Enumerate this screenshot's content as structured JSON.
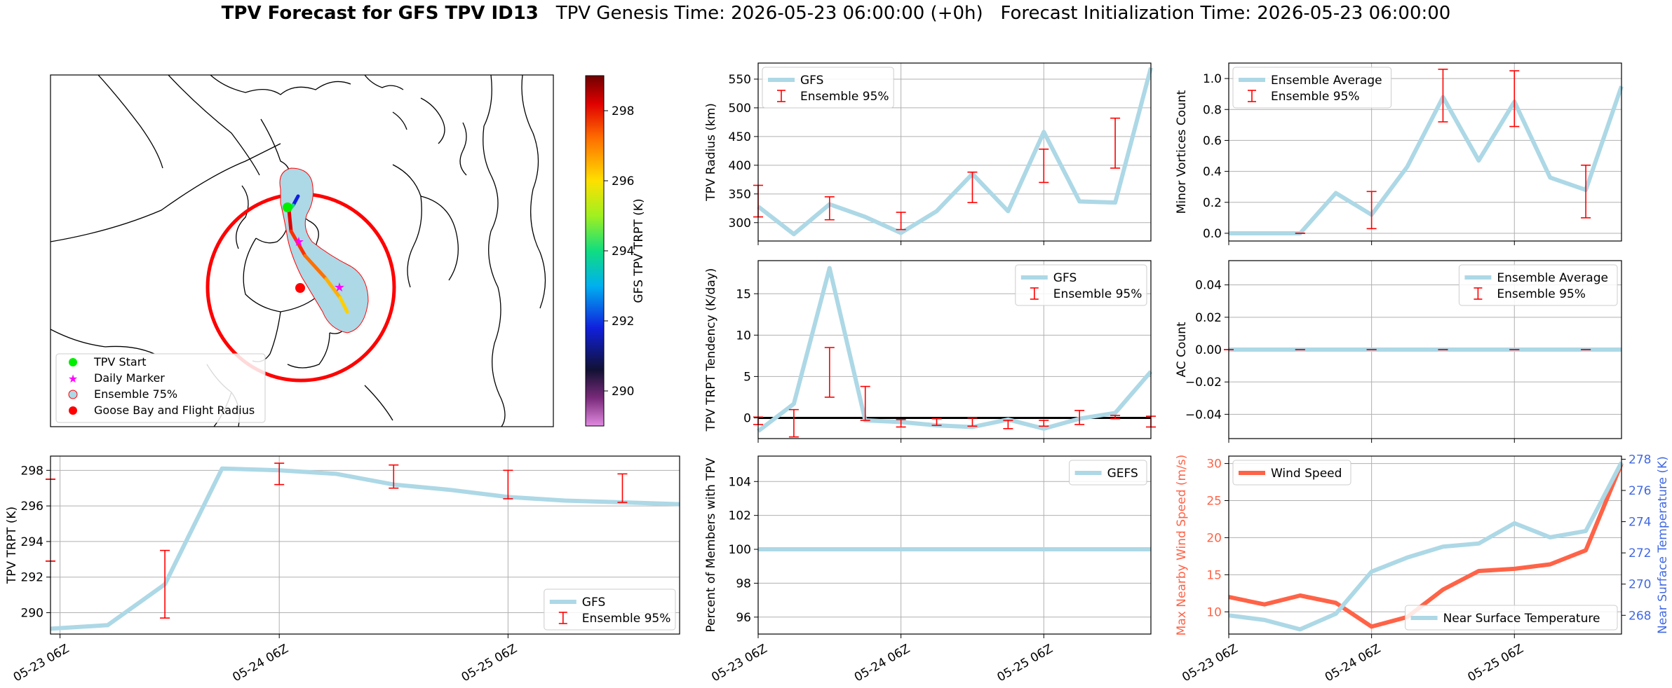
{
  "title": {
    "bold": "TPV Forecast for GFS TPV ID13",
    "genesis": "TPV Genesis Time: 2026-05-23 06:00:00 (+0h)",
    "init": "Forecast Initialization Time: 2026-05-23 06:00:00"
  },
  "colors": {
    "series": "#add8e6",
    "errorbar": "#ff0000",
    "wind": "#ff6347",
    "temp_axis": "#4169e1",
    "zero_line": "#000000",
    "grid": "#b0b0b0"
  },
  "map": {
    "legend": [
      "TPV Start",
      "Daily Marker",
      "Ensemble 75%",
      "Goose Bay and Flight Radius"
    ],
    "colorbar_label": "GFS TPV TRPT (K)",
    "colorbar_ticks": [
      290,
      292,
      294,
      296,
      298
    ],
    "colorbar_range": [
      289.0,
      299.0
    ]
  },
  "chart_data": [
    {
      "id": "radius",
      "type": "line",
      "ylabel": "TPV Radius (km)",
      "ylim": [
        268,
        578
      ],
      "yticks": [
        300,
        350,
        400,
        450,
        500,
        550
      ],
      "grid": true,
      "legend_position": "upper-left",
      "legend": [
        "GFS",
        "Ensemble 95%"
      ],
      "series": [
        {
          "name": "GFS",
          "x": [
            0,
            6,
            12,
            18,
            24,
            30,
            36,
            42,
            48,
            54,
            60,
            66
          ],
          "values": [
            328,
            280,
            332,
            310,
            282,
            320,
            385,
            320,
            458,
            337,
            335,
            570
          ]
        }
      ],
      "errorbars": [
        {
          "x": 0,
          "lo": 310,
          "hi": 365
        },
        {
          "x": 12,
          "lo": 305,
          "hi": 345
        },
        {
          "x": 24,
          "lo": 288,
          "hi": 318
        },
        {
          "x": 36,
          "lo": 335,
          "hi": 388
        },
        {
          "x": 48,
          "lo": 370,
          "hi": 428
        },
        {
          "x": 60,
          "lo": 395,
          "hi": 482
        }
      ],
      "xlim": [
        0,
        66
      ],
      "x_ticks": [
        {
          "x": 0,
          "label": ""
        },
        {
          "x": 24,
          "label": ""
        },
        {
          "x": 48,
          "label": ""
        }
      ]
    },
    {
      "id": "minor",
      "type": "line",
      "ylabel": "Minor Vortices Count",
      "ylim": [
        -0.05,
        1.1
      ],
      "yticks": [
        0.0,
        0.2,
        0.4,
        0.6,
        0.8,
        1.0
      ],
      "ytick_fmt": 1,
      "grid": true,
      "legend_position": "upper-left",
      "legend": [
        "Ensemble Average",
        "Ensemble 95%"
      ],
      "series": [
        {
          "name": "Ensemble Average",
          "x": [
            0,
            6,
            12,
            18,
            24,
            30,
            36,
            42,
            48,
            54,
            60,
            66
          ],
          "values": [
            0,
            0,
            0,
            0.26,
            0.12,
            0.43,
            0.88,
            0.47,
            0.85,
            0.36,
            0.28,
            0.95
          ]
        }
      ],
      "errorbars": [
        {
          "x": 12,
          "lo": 0.0,
          "hi": 0.0
        },
        {
          "x": 24,
          "lo": 0.03,
          "hi": 0.27
        },
        {
          "x": 36,
          "lo": 0.72,
          "hi": 1.06
        },
        {
          "x": 48,
          "lo": 0.69,
          "hi": 1.05
        },
        {
          "x": 60,
          "lo": 0.1,
          "hi": 0.44
        }
      ],
      "xlim": [
        0,
        66
      ],
      "x_ticks": [
        {
          "x": 0,
          "label": ""
        },
        {
          "x": 24,
          "label": ""
        },
        {
          "x": 48,
          "label": ""
        }
      ]
    },
    {
      "id": "tendency",
      "type": "line",
      "ylabel": "TPV TRPT Tendency (K/day)",
      "ylim": [
        -2.5,
        19
      ],
      "yticks": [
        0,
        5,
        10,
        15
      ],
      "grid": true,
      "zero_line": true,
      "legend_position": "upper-right",
      "legend": [
        "GFS",
        "Ensemble 95%"
      ],
      "series": [
        {
          "name": "GFS",
          "x": [
            0,
            6,
            12,
            18,
            24,
            30,
            36,
            42,
            48,
            54,
            60,
            66
          ],
          "values": [
            -1.6,
            1.7,
            18.1,
            -0.3,
            -0.5,
            -0.9,
            -1.1,
            -0.2,
            -1.3,
            -0.1,
            0.6,
            5.6
          ]
        }
      ],
      "errorbars": [
        {
          "x": 0,
          "lo": -0.8,
          "hi": 0.1
        },
        {
          "x": 6,
          "lo": -2.3,
          "hi": 1.0
        },
        {
          "x": 12,
          "lo": 2.5,
          "hi": 8.5
        },
        {
          "x": 18,
          "lo": -0.3,
          "hi": 3.8
        },
        {
          "x": 24,
          "lo": -1.1,
          "hi": -0.2
        },
        {
          "x": 30,
          "lo": -0.9,
          "hi": -0.1
        },
        {
          "x": 36,
          "lo": -1.0,
          "hi": 0.0
        },
        {
          "x": 42,
          "lo": -1.3,
          "hi": -0.3
        },
        {
          "x": 48,
          "lo": -1.0,
          "hi": -0.3
        },
        {
          "x": 54,
          "lo": -0.8,
          "hi": 0.9
        },
        {
          "x": 60,
          "lo": -0.1,
          "hi": 0.3
        },
        {
          "x": 66,
          "lo": -1.1,
          "hi": 0.2
        }
      ],
      "xlim": [
        0,
        66
      ],
      "x_ticks": [
        {
          "x": 0,
          "label": ""
        },
        {
          "x": 24,
          "label": ""
        },
        {
          "x": 48,
          "label": ""
        }
      ]
    },
    {
      "id": "ac",
      "type": "line",
      "ylabel": "AC Count",
      "ylim": [
        -0.055,
        0.055
      ],
      "yticks": [
        -0.04,
        -0.02,
        0.0,
        0.02,
        0.04
      ],
      "ytick_fmt": 2,
      "grid": true,
      "legend_position": "upper-right",
      "legend": [
        "Ensemble Average",
        "Ensemble 95%"
      ],
      "series": [
        {
          "name": "Ensemble Average",
          "x": [
            0,
            6,
            12,
            18,
            24,
            30,
            36,
            42,
            48,
            54,
            60,
            66
          ],
          "values": [
            0,
            0,
            0,
            0,
            0,
            0,
            0,
            0,
            0,
            0,
            0,
            0
          ]
        }
      ],
      "errorbars": [
        {
          "x": 0,
          "lo": 0,
          "hi": 0
        },
        {
          "x": 12,
          "lo": 0,
          "hi": 0
        },
        {
          "x": 24,
          "lo": 0,
          "hi": 0
        },
        {
          "x": 36,
          "lo": 0,
          "hi": 0
        },
        {
          "x": 48,
          "lo": 0,
          "hi": 0
        },
        {
          "x": 60,
          "lo": 0,
          "hi": 0
        }
      ],
      "xlim": [
        0,
        66
      ],
      "x_ticks": [
        {
          "x": 0,
          "label": ""
        },
        {
          "x": 24,
          "label": ""
        },
        {
          "x": 48,
          "label": ""
        }
      ]
    },
    {
      "id": "trpt",
      "type": "line",
      "ylabel": "TPV TRPT (K)",
      "ylim": [
        288.8,
        298.8
      ],
      "yticks": [
        290,
        292,
        294,
        296,
        298
      ],
      "grid": true,
      "legend_position": "lower-right",
      "legend": [
        "GFS",
        "Ensemble 95%"
      ],
      "series": [
        {
          "name": "GFS",
          "x": [
            0,
            6,
            12,
            18,
            24,
            30,
            36,
            42,
            48,
            54,
            60,
            66
          ],
          "values": [
            289.1,
            289.3,
            291.6,
            298.1,
            298.0,
            297.8,
            297.2,
            296.9,
            296.5,
            296.3,
            296.2,
            296.1
          ]
        }
      ],
      "errorbars": [
        {
          "x": 0,
          "lo": 297.5,
          "hi": 297.5
        },
        {
          "x": 0,
          "lo": 292.9,
          "hi": 292.9
        },
        {
          "x": 12,
          "lo": 289.7,
          "hi": 293.5
        },
        {
          "x": 24,
          "lo": 297.2,
          "hi": 298.4
        },
        {
          "x": 36,
          "lo": 297.0,
          "hi": 298.3
        },
        {
          "x": 48,
          "lo": 296.4,
          "hi": 298.0
        },
        {
          "x": 60,
          "lo": 296.2,
          "hi": 297.8
        }
      ],
      "xlim": [
        0,
        66
      ],
      "x_ticks": [
        {
          "x": 1,
          "label": "05-23 06Z"
        },
        {
          "x": 24,
          "label": "05-24 06Z"
        },
        {
          "x": 48,
          "label": "05-25 06Z"
        }
      ]
    },
    {
      "id": "members",
      "type": "line",
      "ylabel": "Percent of Members with TPV",
      "ylim": [
        95,
        105.5
      ],
      "yticks": [
        96,
        98,
        100,
        102,
        104
      ],
      "grid": true,
      "legend_position": "upper-right",
      "legend": [
        "GEFS"
      ],
      "series": [
        {
          "name": "GEFS",
          "x": [
            0,
            6,
            12,
            18,
            24,
            30,
            36,
            42,
            48,
            54,
            60,
            66
          ],
          "values": [
            100,
            100,
            100,
            100,
            100,
            100,
            100,
            100,
            100,
            100,
            100,
            100
          ]
        }
      ],
      "errorbars": [],
      "xlim": [
        0,
        66
      ],
      "x_ticks": [
        {
          "x": 0,
          "label": "05-23 06Z"
        },
        {
          "x": 24,
          "label": "05-24 06Z"
        },
        {
          "x": 48,
          "label": "05-25 06Z"
        }
      ]
    },
    {
      "id": "wind",
      "type": "line",
      "ylabel": "Max Nearby Wind Speed (m/s)",
      "ylabel_right": "Near Surface Temperature (K)",
      "ylim": [
        7,
        31
      ],
      "yticks": [
        10,
        15,
        20,
        25,
        30
      ],
      "ylim_right": [
        266.8,
        278.2
      ],
      "yticks_right": [
        268,
        270,
        272,
        274,
        276,
        278
      ],
      "grid": true,
      "legend_left": [
        "Wind Speed"
      ],
      "legend_right": [
        "Near Surface Temperature"
      ],
      "series": [
        {
          "name": "Wind Speed",
          "axis": "left",
          "x": [
            0,
            6,
            12,
            18,
            24,
            30,
            36,
            42,
            48,
            54,
            60,
            66
          ],
          "values": [
            12.0,
            11.0,
            12.2,
            11.2,
            8.0,
            9.3,
            13.0,
            15.5,
            15.8,
            16.4,
            18.3,
            30.0
          ]
        },
        {
          "name": "Near Surface Temperature",
          "axis": "right",
          "x": [
            0,
            6,
            12,
            18,
            24,
            30,
            36,
            42,
            48,
            54,
            60,
            66
          ],
          "values": [
            268.0,
            267.7,
            267.1,
            268.1,
            270.8,
            271.7,
            272.4,
            272.6,
            273.9,
            273.0,
            273.4,
            277.8
          ]
        }
      ],
      "errorbars": [],
      "xlim": [
        0,
        66
      ],
      "x_ticks": [
        {
          "x": 0,
          "label": "05-23 06Z"
        },
        {
          "x": 24,
          "label": "05-24 06Z"
        },
        {
          "x": 48,
          "label": "05-25 06Z"
        }
      ]
    }
  ]
}
